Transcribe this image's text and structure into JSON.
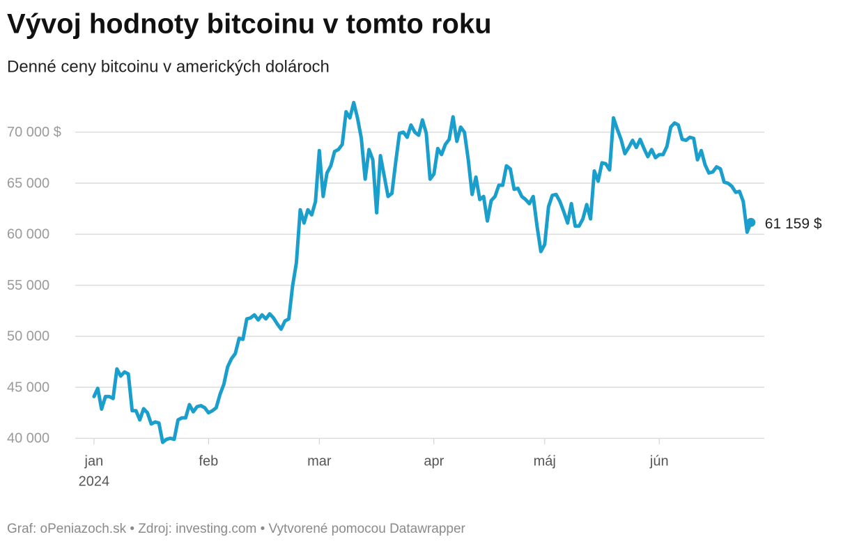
{
  "chart_data": {
    "type": "line",
    "title": "Vývoj hodnoty bitcoinu v tomto roku",
    "subtitle": "Denné ceny bitcoinu v amerických dolároch",
    "footer": "Graf: oPeniazoch.sk • Zdroj: investing.com • Vytvorené pomocou Datawrapper",
    "color": "#1a9fcc",
    "grid": true,
    "year_label": "2024",
    "end_label": "61 159 $",
    "xlim": [
      -4.9,
      175.5
    ],
    "xticks": [
      {
        "value": 0,
        "label": "jan"
      },
      {
        "value": 30,
        "label": "feb"
      },
      {
        "value": 59,
        "label": "mar"
      },
      {
        "value": 89,
        "label": "apr"
      },
      {
        "value": 118,
        "label": "máj"
      },
      {
        "value": 148,
        "label": "jún"
      }
    ],
    "ylim": [
      39000,
      73740
    ],
    "yticks": [
      {
        "value": 40000,
        "label": "40 000"
      },
      {
        "value": 45000,
        "label": "45 000"
      },
      {
        "value": 50000,
        "label": "50 000"
      },
      {
        "value": 55000,
        "label": "55 000"
      },
      {
        "value": 60000,
        "label": "60 000"
      },
      {
        "value": 65000,
        "label": "65 000"
      },
      {
        "value": 70000,
        "label": "70 000 $"
      }
    ],
    "values": [
      44090,
      44900,
      42860,
      44090,
      44090,
      43900,
      46800,
      46100,
      46500,
      46300,
      42700,
      42700,
      41800,
      42900,
      42500,
      41400,
      41600,
      41500,
      39600,
      39900,
      40000,
      39900,
      41800,
      42000,
      42000,
      43300,
      42600,
      43100,
      43200,
      43000,
      42500,
      42700,
      43000,
      44300,
      45300,
      47000,
      47800,
      48300,
      49800,
      49700,
      51700,
      51800,
      52100,
      51600,
      52100,
      51700,
      52200,
      51800,
      51200,
      50700,
      51500,
      51700,
      54900,
      57200,
      62400,
      61100,
      62400,
      61900,
      63200,
      68200,
      63700,
      66000,
      66700,
      68100,
      68300,
      68800,
      72000,
      71400,
      72900,
      71400,
      69400,
      65400,
      68300,
      67300,
      62100,
      67700,
      65700,
      63700,
      64000,
      67100,
      69900,
      70000,
      69500,
      70700,
      70000,
      69700,
      71200,
      69900,
      65400,
      65900,
      68400,
      67800,
      68800,
      69300,
      71500,
      69100,
      70500,
      70000,
      67300,
      63900,
      65600,
      63400,
      63700,
      61300,
      63300,
      63700,
      64800,
      64800,
      66700,
      66400,
      64400,
      64500,
      63700,
      63400,
      63000,
      63700,
      60800,
      58300,
      59000,
      62700,
      63800,
      63900,
      63200,
      62200,
      61100,
      63000,
      60800,
      60800,
      61500,
      62900,
      61500,
      66200,
      65200,
      67000,
      66900,
      66300,
      71400,
      70300,
      69300,
      67900,
      68500,
      69200,
      68500,
      69300,
      68400,
      67600,
      68300,
      67500,
      67800,
      67800,
      68600,
      70500,
      70900,
      70700,
      69300,
      69200,
      69500,
      69400,
      67300,
      68200,
      66800,
      66000,
      66100,
      66600,
      66400,
      65100,
      65000,
      64700,
      64100,
      64200,
      63200,
      60200,
      61159
    ]
  }
}
